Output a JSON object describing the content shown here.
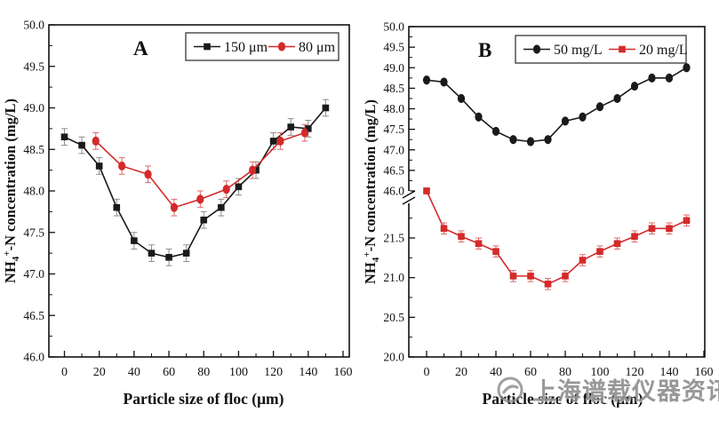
{
  "page": {
    "background": "#ffffff"
  },
  "watermark": {
    "text": "上海谱载仪器资讯",
    "color": "#8a8a8a",
    "logo": "swirl-ring-icon"
  },
  "chart_data": [
    {
      "id": "chart-a",
      "type": "line",
      "panel_label": "A",
      "xlabel": "Particle size of floc (μm)",
      "ylabel": {
        "prefix": "NH",
        "sub": "4",
        "sup": "+",
        "suffix": "-N concentration (mg/L)"
      },
      "x_ticks": [
        0,
        20,
        40,
        60,
        80,
        100,
        120,
        140,
        160
      ],
      "x_minor_step": 10,
      "xlim": [
        0,
        160
      ],
      "grid": false,
      "legend_position": "top-right",
      "y_segments": [
        {
          "range": [
            46.0,
            50.0
          ],
          "ticks": [
            46.0,
            46.5,
            47.0,
            47.5,
            48.0,
            48.5,
            49.0,
            49.5,
            50.0
          ],
          "minor_step": 0.25
        }
      ],
      "axis_break": false,
      "series": [
        {
          "name": "150 μm",
          "color": "#1a1a1a",
          "err_color": "#8c8c8c",
          "marker": "square",
          "err": 0.1,
          "x": [
            0,
            10,
            20,
            30,
            40,
            50,
            60,
            70,
            80,
            90,
            100,
            110,
            120,
            130,
            140,
            150
          ],
          "y": [
            48.65,
            48.55,
            48.3,
            47.8,
            47.4,
            47.25,
            47.2,
            47.25,
            47.65,
            47.8,
            48.05,
            48.25,
            48.6,
            48.77,
            48.75,
            49.0
          ]
        },
        {
          "name": "80 μm",
          "color": "#d42a2a",
          "err_color": "#d96a6a",
          "marker": "circle",
          "err": 0.1,
          "x": [
            18,
            33,
            48,
            63,
            78,
            93,
            108,
            124,
            138
          ],
          "y": [
            48.6,
            48.3,
            48.2,
            47.8,
            47.9,
            48.02,
            48.25,
            48.6,
            48.7
          ]
        }
      ]
    },
    {
      "id": "chart-b",
      "type": "line",
      "panel_label": "B",
      "xlabel": "Particle size of floc (μm)",
      "ylabel": {
        "prefix": "NH",
        "sub": "4",
        "sup": "+",
        "suffix": "-N concentration (mg/L)"
      },
      "x_ticks": [
        0,
        20,
        40,
        60,
        80,
        100,
        120,
        140,
        160
      ],
      "x_minor_step": 10,
      "xlim": [
        0,
        160
      ],
      "grid": false,
      "legend_position": "top-right",
      "y_segments": [
        {
          "range": [
            46.0,
            50.0
          ],
          "ticks": [
            46.0,
            46.5,
            47.0,
            47.5,
            48.0,
            48.5,
            49.0,
            49.5,
            50.0
          ],
          "minor_step": 0.25
        },
        {
          "range": [
            20.0,
            21.5
          ],
          "ticks": [
            20.0,
            20.5,
            21.0,
            21.5
          ],
          "minor_step": 0.25
        }
      ],
      "axis_break": true,
      "series": [
        {
          "name": "50 mg/L",
          "color": "#1a1a1a",
          "err_color": "#8c8c8c",
          "marker": "circle",
          "err": 0.05,
          "x": [
            0,
            10,
            20,
            30,
            40,
            50,
            60,
            70,
            80,
            90,
            100,
            110,
            120,
            130,
            140,
            150
          ],
          "y": [
            48.7,
            48.65,
            48.25,
            47.8,
            47.45,
            47.25,
            47.2,
            47.25,
            47.7,
            47.8,
            48.05,
            48.25,
            48.55,
            48.75,
            48.75,
            49.0
          ]
        },
        {
          "name": "20 mg/L",
          "color": "#d42a2a",
          "err_color": "#d96a6a",
          "marker": "square",
          "err": 0.07,
          "x": [
            0,
            10,
            20,
            30,
            40,
            50,
            60,
            70,
            80,
            90,
            100,
            110,
            120,
            130,
            140,
            150
          ],
          "y": [
            46.0,
            21.62,
            21.52,
            21.43,
            21.33,
            21.02,
            21.02,
            20.92,
            21.02,
            21.22,
            21.33,
            21.43,
            21.52,
            21.62,
            21.62,
            21.72
          ]
        }
      ]
    }
  ]
}
